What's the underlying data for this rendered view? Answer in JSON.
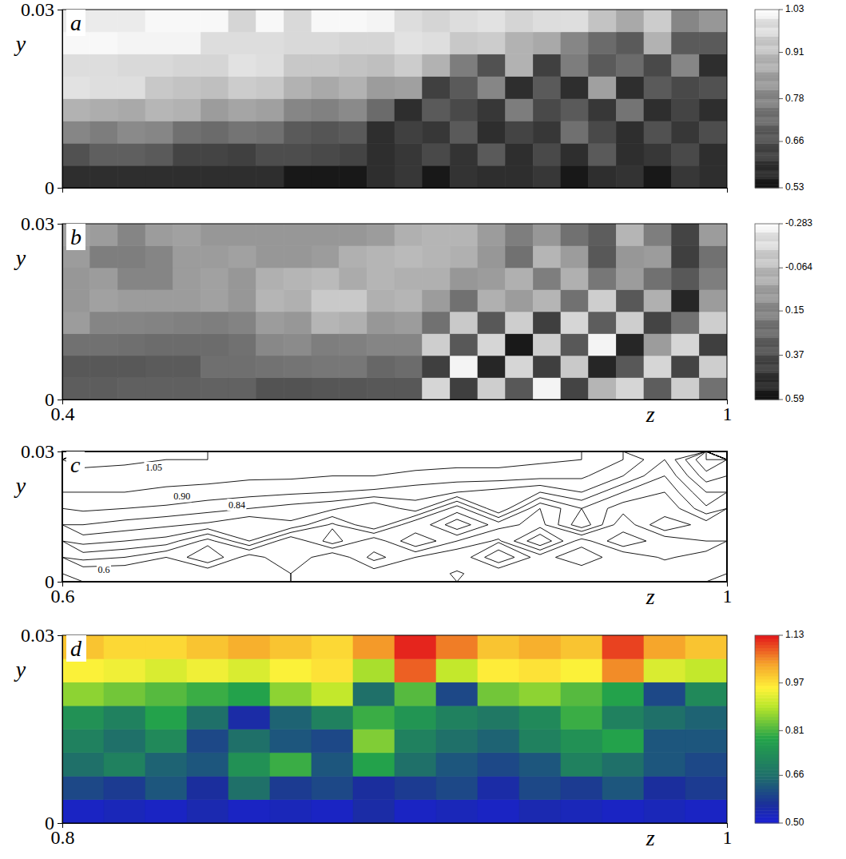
{
  "chart_data": [
    {
      "type": "heatmap",
      "title": "a",
      "ylabel": "y",
      "xlim": [
        0.4,
        1
      ],
      "ylim": [
        0,
        0.03
      ],
      "xticks": [
        0.4,
        1
      ],
      "yticks": [
        0,
        0.03
      ],
      "tick_labels": "y",
      "color_range": [
        0.53,
        1.03
      ],
      "color_ticks": [
        1.03,
        0.91,
        0.78,
        0.66,
        0.53
      ],
      "cells": [
        [
          0.56,
          0.56,
          0.56,
          0.56,
          0.56,
          0.56,
          0.56,
          0.56,
          0.55,
          0.55,
          0.55,
          0.56,
          0.58,
          0.55,
          0.57,
          0.6,
          0.56,
          0.58,
          0.55,
          0.6,
          0.57,
          0.55,
          0.58,
          0.56
        ],
        [
          0.68,
          0.67,
          0.67,
          0.66,
          0.65,
          0.65,
          0.64,
          0.63,
          0.63,
          0.62,
          0.61,
          0.6,
          0.58,
          0.62,
          0.57,
          0.66,
          0.6,
          0.62,
          0.56,
          0.7,
          0.6,
          0.58,
          0.62,
          0.6
        ],
        [
          0.8,
          0.78,
          0.77,
          0.76,
          0.75,
          0.74,
          0.72,
          0.71,
          0.7,
          0.69,
          0.66,
          0.6,
          0.64,
          0.58,
          0.7,
          0.6,
          0.65,
          0.58,
          0.75,
          0.62,
          0.6,
          0.68,
          0.58,
          0.63
        ],
        [
          0.9,
          0.89,
          0.88,
          0.87,
          0.86,
          0.85,
          0.83,
          0.82,
          0.8,
          0.79,
          0.77,
          0.74,
          0.6,
          0.7,
          0.62,
          0.58,
          0.78,
          0.62,
          0.66,
          0.58,
          0.72,
          0.6,
          0.65,
          0.6
        ],
        [
          0.97,
          0.96,
          0.96,
          0.95,
          0.94,
          0.93,
          0.92,
          0.91,
          0.9,
          0.88,
          0.86,
          0.85,
          0.82,
          0.64,
          0.66,
          0.8,
          0.6,
          0.7,
          0.6,
          0.82,
          0.6,
          0.7,
          0.62,
          0.68
        ],
        [
          1.0,
          1.0,
          0.99,
          0.99,
          0.98,
          0.98,
          0.97,
          0.96,
          0.95,
          0.95,
          0.94,
          0.93,
          0.92,
          0.9,
          0.78,
          0.68,
          0.86,
          0.64,
          0.78,
          0.66,
          0.74,
          0.62,
          0.8,
          0.6
        ],
        [
          1.02,
          1.02,
          1.01,
          1.01,
          1.01,
          1.0,
          1.0,
          1.0,
          0.99,
          0.99,
          0.98,
          0.98,
          0.97,
          0.96,
          0.95,
          0.92,
          0.9,
          0.88,
          0.8,
          0.74,
          0.7,
          0.86,
          0.66,
          0.7
        ],
        [
          1.03,
          1.03,
          1.03,
          1.02,
          1.02,
          1.02,
          0.98,
          1.02,
          0.99,
          1.02,
          1.02,
          1.01,
          1.0,
          0.98,
          1.0,
          0.97,
          0.98,
          1.0,
          0.96,
          0.94,
          0.88,
          0.92,
          0.8,
          0.84
        ]
      ]
    },
    {
      "type": "heatmap",
      "title": "b",
      "xlabel": "z",
      "ylabel": "y",
      "xlim": [
        0.4,
        1
      ],
      "ylim": [
        0,
        0.03
      ],
      "xticks": [
        0.4,
        1
      ],
      "yticks": [
        0,
        0.03
      ],
      "color_range": [
        -0.283,
        0.59
      ],
      "color_ticks": [
        -0.283,
        -0.064,
        0.15,
        0.37,
        0.59
      ],
      "cells": [
        [
          0.35,
          0.35,
          0.34,
          0.34,
          0.34,
          0.33,
          0.33,
          0.32,
          0.32,
          0.31,
          0.31,
          0.3,
          0.3,
          -0.2,
          0.4,
          -0.1,
          0.3,
          -0.25,
          0.45,
          0.0,
          -0.2,
          0.35,
          -0.1,
          0.2
        ],
        [
          0.3,
          0.3,
          0.3,
          0.29,
          0.29,
          0.28,
          0.28,
          0.27,
          0.26,
          0.25,
          0.25,
          0.24,
          0.22,
          0.4,
          -0.25,
          0.5,
          -0.2,
          0.4,
          -0.15,
          0.5,
          0.3,
          -0.2,
          0.45,
          -0.1
        ],
        [
          0.2,
          0.2,
          0.21,
          0.22,
          0.22,
          0.22,
          0.2,
          0.18,
          0.17,
          0.15,
          0.14,
          0.12,
          0.12,
          -0.1,
          0.3,
          -0.2,
          0.55,
          -0.1,
          0.3,
          -0.25,
          0.5,
          0.1,
          -0.2,
          0.4
        ],
        [
          0.1,
          0.12,
          0.12,
          0.13,
          0.14,
          0.15,
          0.13,
          0.1,
          0.05,
          0.0,
          0.02,
          0.05,
          0.1,
          0.2,
          -0.15,
          0.3,
          -0.1,
          0.4,
          -0.2,
          0.35,
          -0.1,
          0.45,
          0.2,
          -0.1
        ],
        [
          0.05,
          0.08,
          0.1,
          0.1,
          0.1,
          0.08,
          0.05,
          0.0,
          -0.05,
          -0.08,
          -0.08,
          -0.05,
          0.0,
          0.1,
          0.2,
          -0.05,
          0.1,
          0.0,
          0.2,
          -0.1,
          0.3,
          -0.05,
          0.5,
          0.1
        ],
        [
          0.05,
          0.1,
          0.12,
          0.12,
          0.1,
          0.08,
          0.05,
          0.02,
          0.0,
          -0.02,
          -0.03,
          0.0,
          0.02,
          -0.05,
          0.05,
          0.1,
          -0.05,
          0.15,
          -0.05,
          0.25,
          0.1,
          0.2,
          0.3,
          0.15
        ],
        [
          0.1,
          0.15,
          0.15,
          0.12,
          0.1,
          0.1,
          0.08,
          0.05,
          0.05,
          0.03,
          0.02,
          0.0,
          -0.02,
          0.0,
          -0.05,
          0.05,
          0.2,
          0.0,
          0.1,
          0.3,
          0.05,
          0.1,
          0.4,
          0.2
        ],
        [
          0.08,
          0.1,
          0.12,
          0.1,
          0.08,
          0.05,
          0.05,
          0.05,
          0.05,
          0.05,
          0.05,
          0.03,
          0.02,
          0.0,
          0.0,
          0.1,
          0.15,
          0.05,
          0.2,
          0.35,
          0.0,
          0.15,
          0.45,
          0.1
        ]
      ]
    },
    {
      "type": "contour",
      "title": "c",
      "xlabel": "z",
      "ylabel": "y",
      "xlim": [
        0.6,
        1
      ],
      "ylim": [
        0,
        0.03
      ],
      "xticks": [
        0.6,
        1
      ],
      "yticks": [
        0,
        0.03
      ],
      "levels": [
        0.6,
        0.65,
        0.7,
        0.75,
        0.8,
        0.85,
        0.9,
        0.95,
        1.0,
        1.05
      ],
      "annotations": [
        {
          "text": "1.05",
          "x": 0.655,
          "y": 0.026
        },
        {
          "text": "0.90",
          "x": 0.672,
          "y": 0.0195
        },
        {
          "text": "0.84",
          "x": 0.705,
          "y": 0.0175
        },
        {
          "text": "0.6",
          "x": 0.625,
          "y": 0.0025
        }
      ],
      "cells": [
        [
          0.6,
          0.6,
          0.6,
          0.6,
          0.62,
          0.65,
          0.6,
          0.62,
          0.6,
          0.66,
          0.6,
          0.63,
          0.6,
          0.64,
          0.6,
          0.62
        ],
        [
          0.72,
          0.7,
          0.65,
          0.75,
          0.62,
          0.7,
          0.6,
          0.72,
          0.65,
          0.6,
          0.75,
          0.62,
          0.7,
          0.6,
          0.66,
          0.62
        ],
        [
          0.82,
          0.8,
          0.78,
          0.68,
          0.8,
          0.65,
          0.78,
          0.66,
          0.8,
          0.7,
          0.64,
          0.8,
          0.62,
          0.75,
          0.66,
          0.7
        ],
        [
          0.9,
          0.88,
          0.86,
          0.84,
          0.8,
          0.84,
          0.74,
          0.85,
          0.7,
          0.84,
          0.72,
          0.68,
          0.84,
          0.66,
          0.8,
          0.72
        ],
        [
          0.96,
          0.95,
          0.94,
          0.92,
          0.9,
          0.88,
          0.86,
          0.8,
          0.88,
          0.72,
          0.9,
          0.7,
          0.8,
          0.72,
          0.7,
          0.84
        ],
        [
          1.0,
          1.0,
          0.99,
          0.98,
          0.97,
          0.96,
          0.95,
          0.94,
          0.92,
          0.9,
          0.88,
          0.85,
          0.9,
          0.8,
          0.75,
          0.9
        ],
        [
          1.04,
          1.03,
          1.02,
          1.02,
          1.01,
          1.01,
          1.0,
          1.0,
          0.99,
          0.98,
          0.98,
          0.97,
          0.96,
          0.9,
          0.8,
          0.98
        ],
        [
          1.06,
          1.06,
          1.05,
          1.05,
          1.04,
          1.04,
          1.03,
          1.03,
          1.02,
          1.02,
          1.02,
          1.01,
          1.0,
          0.95,
          0.85,
          1.05
        ]
      ]
    },
    {
      "type": "heatmap",
      "title": "d",
      "xlabel": "z",
      "ylabel": "y",
      "xlim": [
        0.8,
        1
      ],
      "ylim": [
        0,
        0.03
      ],
      "xticks": [
        0.8,
        1
      ],
      "yticks": [
        0,
        0.03
      ],
      "color_range": [
        0.5,
        1.13
      ],
      "color_ticks": [
        1.13,
        0.97,
        0.81,
        0.66,
        {
          "value": 0.5,
          "label": "0.50"
        }
      ],
      "cells": [
        [
          0.52,
          0.53,
          0.52,
          0.54,
          0.52,
          0.53,
          0.52,
          0.55,
          0.52,
          0.53,
          0.52,
          0.54,
          0.53,
          0.52,
          0.53,
          0.52
        ],
        [
          0.6,
          0.58,
          0.62,
          0.56,
          0.66,
          0.58,
          0.6,
          0.56,
          0.58,
          0.6,
          0.55,
          0.6,
          0.58,
          0.62,
          0.56,
          0.58
        ],
        [
          0.66,
          0.7,
          0.64,
          0.62,
          0.74,
          0.8,
          0.62,
          0.78,
          0.66,
          0.62,
          0.6,
          0.62,
          0.7,
          0.66,
          0.62,
          0.6
        ],
        [
          0.7,
          0.66,
          0.72,
          0.6,
          0.66,
          0.62,
          0.6,
          0.85,
          0.7,
          0.66,
          0.64,
          0.7,
          0.74,
          0.78,
          0.62,
          0.62
        ],
        [
          0.74,
          0.7,
          0.78,
          0.66,
          0.55,
          0.64,
          0.7,
          0.8,
          0.75,
          0.7,
          0.68,
          0.72,
          0.8,
          0.7,
          0.66,
          0.64
        ],
        [
          0.86,
          0.84,
          0.82,
          0.8,
          0.78,
          0.86,
          0.9,
          0.66,
          0.82,
          0.6,
          0.84,
          0.86,
          0.82,
          0.78,
          0.6,
          0.72
        ],
        [
          0.95,
          0.94,
          0.92,
          0.94,
          0.92,
          0.95,
          0.97,
          0.88,
          1.08,
          0.9,
          0.96,
          0.97,
          0.95,
          1.05,
          0.92,
          0.9
        ],
        [
          1.0,
          0.98,
          0.98,
          1.0,
          1.02,
          1.0,
          0.98,
          1.04,
          1.12,
          1.06,
          1.0,
          1.02,
          1.0,
          1.1,
          1.03,
          1.0
        ]
      ]
    }
  ]
}
